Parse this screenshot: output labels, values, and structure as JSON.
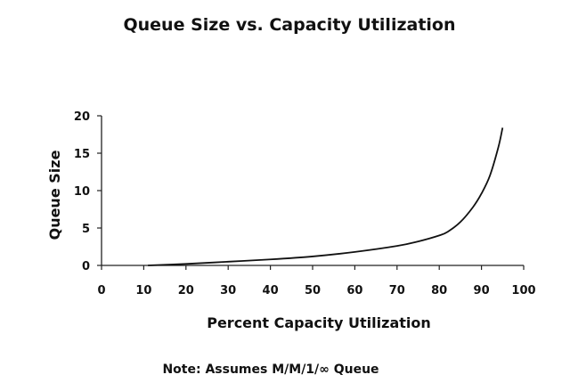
{
  "chart_data": {
    "type": "line",
    "title": "Queue Size vs. Capacity Utilization",
    "xlabel": "Percent Capacity Utilization",
    "ylabel": "Queue Size",
    "xlim": [
      0,
      100
    ],
    "ylim": [
      0,
      20
    ],
    "xticks": [
      0,
      10,
      20,
      30,
      40,
      50,
      60,
      70,
      80,
      90,
      100
    ],
    "yticks": [
      0,
      5,
      10,
      15,
      20
    ],
    "grid": false,
    "series": [
      {
        "x": [
          11,
          20,
          30,
          40,
          50,
          60,
          70,
          75,
          80,
          82,
          85,
          88,
          90,
          92,
          94,
          95
        ],
        "y": [
          0.0,
          0.2,
          0.5,
          0.8,
          1.2,
          1.8,
          2.6,
          3.2,
          4.0,
          4.5,
          5.8,
          7.8,
          9.6,
          12.0,
          15.8,
          18.4
        ]
      }
    ],
    "note": "Note: Assumes M/M/1/∞ Queue"
  }
}
